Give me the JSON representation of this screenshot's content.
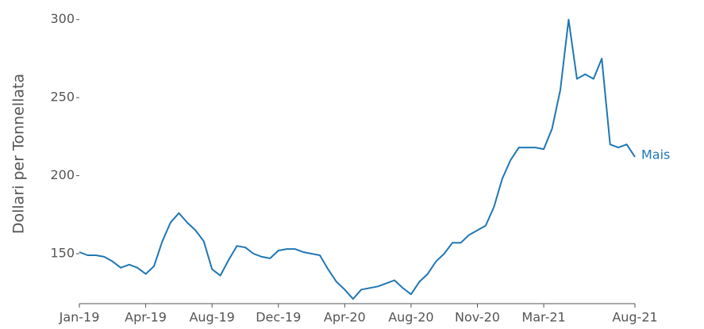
{
  "chart_data": {
    "type": "line",
    "y_label": "Dollari per Tonnellata",
    "categories": [
      "Jan-19",
      null,
      null,
      null,
      null,
      null,
      null,
      null,
      "Apr-19",
      null,
      null,
      null,
      null,
      null,
      null,
      null,
      "Aug-19",
      null,
      null,
      null,
      null,
      null,
      null,
      null,
      "Dec-19",
      null,
      null,
      null,
      null,
      null,
      null,
      null,
      "Apr-20",
      null,
      null,
      null,
      null,
      null,
      null,
      null,
      "Aug-20",
      null,
      null,
      null,
      null,
      null,
      null,
      null,
      "Nov-20",
      null,
      null,
      null,
      null,
      null,
      null,
      null,
      "Mar-21",
      null,
      null,
      null,
      null,
      null,
      null,
      null,
      null,
      null,
      null,
      "Aug-21"
    ],
    "series": [
      {
        "name": "Mais",
        "color": "#1f77b4",
        "values": [
          151,
          149,
          149,
          148,
          145,
          141,
          143,
          141,
          137,
          142,
          158,
          170,
          176,
          170,
          165,
          158,
          140,
          136,
          146,
          155,
          154,
          150,
          148,
          147,
          152,
          153,
          153,
          151,
          150,
          149,
          140,
          132,
          127,
          121,
          127,
          128,
          129,
          131,
          133,
          128,
          124,
          132,
          137,
          145,
          150,
          157,
          157,
          162,
          165,
          168,
          180,
          198,
          210,
          218,
          218,
          218,
          217,
          230,
          255,
          300,
          262,
          265,
          262,
          275,
          220,
          218,
          220,
          212
        ]
      }
    ],
    "ylim": [
      118,
      310
    ],
    "yticks": [
      150,
      200,
      250,
      300
    ],
    "grid": false
  }
}
